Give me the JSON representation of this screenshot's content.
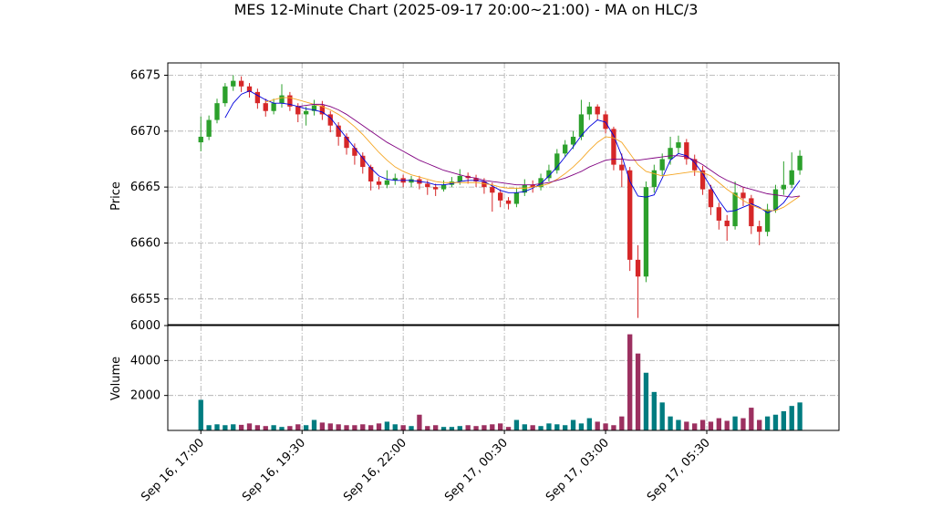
{
  "chart_data": {
    "type": "candlestick",
    "title": "MES 12-Minute Chart (2025-09-17 20:00~21:00) - MA on HLC/3",
    "ylabel": "Price",
    "volume_ylabel": "Volume",
    "x": [
      "Sep 16, 17:00",
      "Sep 16, 17:12",
      "Sep 16, 17:24",
      "Sep 16, 17:36",
      "Sep 16, 17:48",
      "Sep 16, 18:00",
      "Sep 16, 18:12",
      "Sep 16, 18:24",
      "Sep 16, 18:36",
      "Sep 16, 18:48",
      "Sep 16, 19:00",
      "Sep 16, 19:12",
      "Sep 16, 19:24",
      "Sep 16, 19:36",
      "Sep 16, 19:48",
      "Sep 16, 20:00",
      "Sep 16, 20:12",
      "Sep 16, 20:24",
      "Sep 16, 20:36",
      "Sep 16, 20:48",
      "Sep 16, 21:00",
      "Sep 16, 21:12",
      "Sep 16, 21:24",
      "Sep 16, 21:36",
      "Sep 16, 21:48",
      "Sep 16, 22:00",
      "Sep 16, 22:12",
      "Sep 16, 22:24",
      "Sep 16, 22:36",
      "Sep 16, 22:48",
      "Sep 16, 23:00",
      "Sep 16, 23:12",
      "Sep 16, 23:24",
      "Sep 16, 23:36",
      "Sep 16, 23:48",
      "Sep 17, 00:00",
      "Sep 17, 00:12",
      "Sep 17, 00:24",
      "Sep 17, 00:36",
      "Sep 17, 00:48",
      "Sep 17, 01:00",
      "Sep 17, 01:12",
      "Sep 17, 01:24",
      "Sep 17, 01:36",
      "Sep 17, 01:48",
      "Sep 17, 02:00",
      "Sep 17, 02:12",
      "Sep 17, 02:24",
      "Sep 17, 02:36",
      "Sep 17, 02:48",
      "Sep 17, 03:00",
      "Sep 17, 03:12",
      "Sep 17, 03:24",
      "Sep 17, 03:36",
      "Sep 17, 03:48",
      "Sep 17, 04:00",
      "Sep 17, 04:12",
      "Sep 17, 04:24",
      "Sep 17, 04:36",
      "Sep 17, 04:48",
      "Sep 17, 05:00",
      "Sep 17, 05:12",
      "Sep 17, 05:24",
      "Sep 17, 05:36",
      "Sep 17, 05:48",
      "Sep 17, 06:00",
      "Sep 17, 06:12",
      "Sep 17, 06:24",
      "Sep 17, 06:36",
      "Sep 17, 06:48",
      "Sep 17, 07:00",
      "Sep 17, 07:12",
      "Sep 17, 07:24",
      "Sep 17, 07:36",
      "Sep 17, 07:48"
    ],
    "open": [
      6669,
      6669.5,
      6671,
      6672.5,
      6674,
      6674.5,
      6674,
      6673.5,
      6672.5,
      6671.8,
      6672.5,
      6673.2,
      6672.2,
      6671.5,
      6671.8,
      6672.3,
      6671.5,
      6670.5,
      6669.5,
      6668.5,
      6667.8,
      6666.8,
      6665.5,
      6665.2,
      6665.6,
      6665.8,
      6665.4,
      6665.7,
      6665.3,
      6665,
      6664.8,
      6665.2,
      6665.5,
      6666,
      6665.8,
      6665.5,
      6665,
      6664.5,
      6663.8,
      6663.5,
      6664.5,
      6665.2,
      6665,
      6665.8,
      6666.5,
      6668,
      6668.8,
      6669.5,
      6671.5,
      6672.2,
      6671.5,
      6670.2,
      6667,
      6666.5,
      6658.5,
      6657,
      6665,
      6666.5,
      6667.5,
      6668.5,
      6669,
      6667.5,
      6666.5,
      6664.8,
      6663.2,
      6662,
      6661.5,
      6664.5,
      6664,
      6661.5,
      6661,
      6663,
      6664.8,
      6665.2,
      6666.5
    ],
    "high": [
      6671.3,
      6671.4,
      6672.9,
      6674.3,
      6675,
      6674.9,
      6674.3,
      6673.8,
      6672.9,
      6672.9,
      6674.2,
      6673.5,
      6672.5,
      6672.2,
      6672.8,
      6672.7,
      6671.8,
      6670.8,
      6669.8,
      6668.9,
      6668.1,
      6667,
      6665.9,
      6666.5,
      6666.2,
      6666.1,
      6666,
      6666,
      6665.6,
      6665.3,
      6665.6,
      6665.9,
      6666.6,
      6666.3,
      6666.1,
      6665.8,
      6665.4,
      6664.8,
      6664.1,
      6664.9,
      6665.7,
      6665.6,
      6666.2,
      6667,
      6668.4,
      6669.2,
      6670,
      6672.8,
      6672.6,
      6672.4,
      6671.8,
      6670.4,
      6668,
      6666.8,
      6659.8,
      6665.5,
      6667,
      6668,
      6669.5,
      6669.6,
      6669.3,
      6667.9,
      6666.9,
      6665.2,
      6663.6,
      6662.5,
      6665.5,
      6665,
      6664.3,
      6662,
      6663.5,
      6665.2,
      6667.3,
      6668.1,
      6668.3
    ],
    "low": [
      6668.2,
      6669.2,
      6670.7,
      6672.2,
      6673.6,
      6673.5,
      6673,
      6672,
      6671.3,
      6671.5,
      6672.1,
      6671.8,
      6670.8,
      6670.5,
      6671.4,
      6671,
      6669.9,
      6668.7,
      6667.9,
      6667,
      6666.2,
      6664.7,
      6664.8,
      6664.9,
      6665.2,
      6665,
      6665,
      6664.8,
      6664.3,
      6664.2,
      6664.6,
      6665,
      6665.2,
      6665.3,
      6665,
      6664.4,
      6662.8,
      6663.2,
      6663,
      6663.2,
      6664.2,
      6664.5,
      6664.7,
      6665.5,
      6666.2,
      6667.7,
      6668.4,
      6669.2,
      6671,
      6671,
      6669.8,
      6666.5,
      6665,
      6657.5,
      6653.3,
      6656.5,
      6664.5,
      6666,
      6667,
      6668,
      6667,
      6666,
      6664.3,
      6662.5,
      6661.2,
      6660.2,
      6661.2,
      6663.3,
      6660.8,
      6659.8,
      6660.6,
      6662.7,
      6664.3,
      6664.9,
      6666.1
    ],
    "close": [
      6669.5,
      6671,
      6672.5,
      6674,
      6674.5,
      6674,
      6673.5,
      6672.5,
      6671.8,
      6672.5,
      6673.2,
      6672.2,
      6671.5,
      6671.8,
      6672.3,
      6671.5,
      6670.5,
      6669.5,
      6668.5,
      6667.8,
      6666.8,
      6665.5,
      6665.2,
      6665.6,
      6665.8,
      6665.4,
      6665.7,
      6665.3,
      6665,
      6664.8,
      6665.2,
      6665.5,
      6666,
      6665.8,
      6665.5,
      6665,
      6664.5,
      6663.8,
      6663.5,
      6664.5,
      6665.2,
      6665,
      6665.8,
      6666.5,
      6668,
      6668.8,
      6669.5,
      6671.5,
      6672.2,
      6671.5,
      6670.2,
      6667,
      6666.5,
      6658.5,
      6657,
      6665,
      6666.5,
      6667.5,
      6668.5,
      6669,
      6667.5,
      6666.5,
      6664.8,
      6663.2,
      6662,
      6661.5,
      6664.5,
      6664,
      6661.5,
      6661,
      6663,
      6664.8,
      6665.2,
      6666.5,
      6667.8
    ],
    "volume": [
      1750,
      300,
      350,
      300,
      350,
      320,
      400,
      300,
      250,
      300,
      200,
      250,
      350,
      300,
      600,
      450,
      400,
      350,
      300,
      300,
      350,
      300,
      400,
      500,
      350,
      300,
      250,
      900,
      250,
      300,
      200,
      200,
      250,
      300,
      250,
      300,
      350,
      400,
      200,
      600,
      350,
      300,
      250,
      400,
      350,
      300,
      600,
      400,
      700,
      500,
      400,
      300,
      800,
      5500,
      4400,
      3300,
      2200,
      1600,
      800,
      600,
      500,
      400,
      600,
      500,
      700,
      550,
      800,
      700,
      1300,
      600,
      800,
      900,
      1100,
      1400,
      1600
    ],
    "up_color": "#2ca02c",
    "down_color": "#d62728",
    "volume_up_color": "#007c80",
    "volume_down_color": "#9c3060",
    "ma": [
      {
        "color": "#0000dd",
        "values": [
          null,
          null,
          null,
          6671.2,
          6672.5,
          6673.3,
          6673.6,
          6673.2,
          6672.8,
          6672.5,
          6672.5,
          6672.4,
          6672.2,
          6672,
          6671.9,
          6671.7,
          6671.2,
          6670.3,
          6669.4,
          6668.5,
          6667.6,
          6666.7,
          6666,
          6665.7,
          6665.6,
          6665.6,
          6665.6,
          6665.5,
          6665.4,
          6665.2,
          6665.2,
          6665.3,
          6665.5,
          6665.6,
          6665.6,
          6665.5,
          6665.1,
          6664.7,
          6664.5,
          6664.5,
          6664.6,
          6664.9,
          6665.3,
          6666,
          6666.8,
          6667.7,
          6668.6,
          6669.6,
          6670.4,
          6671,
          6670.8,
          6669.6,
          6667.8,
          6665.5,
          6664.2,
          6664.1,
          6664.3,
          6665.8,
          6667.4,
          6668,
          6667.8,
          6667.2,
          6666.2,
          6665,
          6663.8,
          6662.8,
          6662.9,
          6663.2,
          6663.5,
          6663.2,
          6662.7,
          6663,
          6663.6,
          6664.6,
          6665.6
        ]
      },
      {
        "color": "#f5a623",
        "values": [
          null,
          null,
          null,
          null,
          null,
          null,
          null,
          null,
          6672.6,
          6672.8,
          6673,
          6673,
          6672.8,
          6672.6,
          6672.4,
          6672.2,
          6671.9,
          6671.5,
          6671,
          6670.4,
          6669.7,
          6668.9,
          6668.1,
          6667.4,
          6666.8,
          6666.4,
          6666.1,
          6665.9,
          6665.7,
          6665.5,
          6665.4,
          6665.4,
          6665.4,
          6665.4,
          6665.4,
          6665.3,
          6665.2,
          6665,
          6664.9,
          6664.9,
          6664.9,
          6665,
          6665.1,
          6665.3,
          6665.7,
          6666.2,
          6666.8,
          6667.5,
          6668.3,
          6669,
          6669.5,
          6669.4,
          6669,
          6668,
          6667,
          6666.4,
          6666.2,
          6666,
          6666.1,
          6666.2,
          6666.3,
          6666.4,
          6666.3,
          6666,
          6665.4,
          6664.8,
          6664.3,
          6663.8,
          6663.4,
          6663.1,
          6662.9,
          6662.9,
          6663.2,
          6663.7,
          6664.2
        ]
      },
      {
        "color": "#800080",
        "values": [
          null,
          null,
          null,
          null,
          null,
          null,
          null,
          null,
          null,
          null,
          null,
          null,
          6672.2,
          6672.3,
          6672.4,
          6672.4,
          6672.2,
          6671.9,
          6671.5,
          6671,
          6670.5,
          6670,
          6669.5,
          6669,
          6668.6,
          6668.2,
          6667.8,
          6667.4,
          6667.1,
          6666.8,
          6666.5,
          6666.3,
          6666.1,
          6665.9,
          6665.8,
          6665.6,
          6665.5,
          6665.4,
          6665.3,
          6665.2,
          6665.2,
          6665.2,
          6665.3,
          6665.4,
          6665.6,
          6665.8,
          6666.1,
          6666.4,
          6666.8,
          6667.1,
          6667.4,
          6667.5,
          6667.5,
          6667.4,
          6667.4,
          6667.5,
          6667.6,
          6667.7,
          6667.8,
          6667.8,
          6667.7,
          6667.4,
          6667,
          6666.5,
          6666,
          6665.6,
          6665.3,
          6665,
          6664.8,
          6664.6,
          6664.4,
          6664.3,
          6664.2,
          6664.1,
          6664.2
        ]
      }
    ],
    "xlim": [
      "Sep 16, 16:11",
      "Sep 17, 08:46"
    ],
    "xticks": [
      "Sep 16, 17:00",
      "Sep 16, 19:30",
      "Sep 16, 22:00",
      "Sep 17, 00:30",
      "Sep 17, 03:00",
      "Sep 17, 05:30"
    ],
    "ylim": [
      6652.7,
      6676.1
    ],
    "yticks": [
      6655,
      6660,
      6665,
      6670,
      6675
    ],
    "volume_ylim": [
      0,
      6000
    ],
    "volume_yticks": [
      2000,
      4000,
      6000
    ],
    "grid": true
  }
}
